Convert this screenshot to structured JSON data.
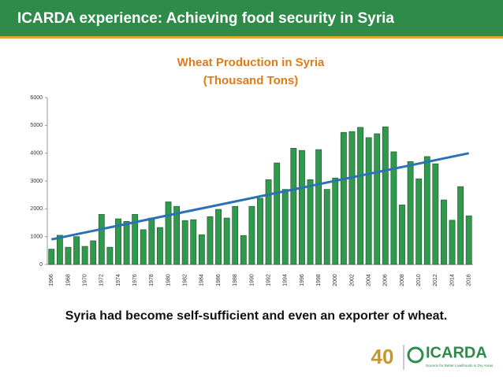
{
  "header": {
    "title": "ICARDA experience: Achieving food security in Syria"
  },
  "chart_data": {
    "type": "bar",
    "title": "Wheat Production in Syria",
    "subtitle": "(Thousand Tons)",
    "categories": [
      "1966",
      null,
      "1968",
      null,
      "1970",
      null,
      "1972",
      null,
      "1974",
      null,
      "1976",
      null,
      "1978",
      null,
      "1980",
      null,
      "1982",
      null,
      "1984",
      null,
      "1986",
      null,
      "1988",
      null,
      "1990",
      null,
      "1992",
      null,
      "1994",
      null,
      "1996",
      null,
      "1998",
      null,
      "2000",
      null,
      "2002",
      null,
      "2004",
      null,
      "2006",
      null,
      "2008",
      null,
      "2010",
      null,
      "2012",
      null,
      "2014",
      null,
      "2016"
    ],
    "values": [
      550,
      1050,
      620,
      1000,
      650,
      850,
      1800,
      620,
      1640,
      1550,
      1800,
      1250,
      1670,
      1330,
      2250,
      2090,
      1580,
      1610,
      1070,
      1720,
      1980,
      1670,
      2090,
      1040,
      2090,
      2380,
      3050,
      3650,
      2700,
      4180,
      4100,
      3050,
      4130,
      2700,
      3110,
      4750,
      4780,
      4930,
      4560,
      4700,
      4950,
      4050,
      2140,
      3700,
      3080,
      3880,
      3620,
      2320,
      1590,
      2800,
      1750
    ],
    "color": "#2f9a4c",
    "trendline": [
      900,
      4000
    ],
    "trend_color": "#2a72b5",
    "ylim": [
      0,
      6000
    ],
    "yticks": [
      0,
      1000,
      2000,
      3000,
      4000,
      5000,
      6000
    ],
    "grid": false
  },
  "caption": "Syria had become self-sufficient and even an exporter of wheat.",
  "footer": {
    "logo_number": "40",
    "logo_name": "ICARDA",
    "tagline": "Science for Better Livelihoods in Dry Areas"
  }
}
